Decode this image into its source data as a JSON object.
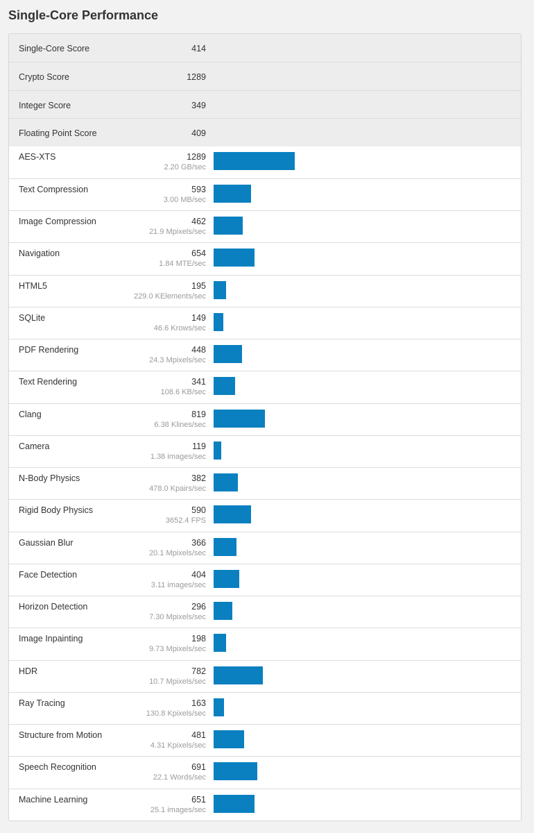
{
  "title": "Single-Core Performance",
  "scores": [
    {
      "label": "Single-Core Score",
      "value": "414"
    },
    {
      "label": "Crypto Score",
      "value": "1289"
    },
    {
      "label": "Integer Score",
      "value": "349"
    },
    {
      "label": "Floating Point Score",
      "value": "409"
    }
  ],
  "benchmarks": [
    {
      "label": "AES-XTS",
      "score": "1289",
      "rate": "2.20 GB/sec"
    },
    {
      "label": "Text Compression",
      "score": "593",
      "rate": "3.00 MB/sec"
    },
    {
      "label": "Image Compression",
      "score": "462",
      "rate": "21.9 Mpixels/sec"
    },
    {
      "label": "Navigation",
      "score": "654",
      "rate": "1.84 MTE/sec"
    },
    {
      "label": "HTML5",
      "score": "195",
      "rate": "229.0 KElements/sec"
    },
    {
      "label": "SQLite",
      "score": "149",
      "rate": "46.6 Krows/sec"
    },
    {
      "label": "PDF Rendering",
      "score": "448",
      "rate": "24.3 Mpixels/sec"
    },
    {
      "label": "Text Rendering",
      "score": "341",
      "rate": "108.6 KB/sec"
    },
    {
      "label": "Clang",
      "score": "819",
      "rate": "6.38 Klines/sec"
    },
    {
      "label": "Camera",
      "score": "119",
      "rate": "1.38 images/sec"
    },
    {
      "label": "N-Body Physics",
      "score": "382",
      "rate": "478.0 Kpairs/sec"
    },
    {
      "label": "Rigid Body Physics",
      "score": "590",
      "rate": "3652.4 FPS"
    },
    {
      "label": "Gaussian Blur",
      "score": "366",
      "rate": "20.1 Mpixels/sec"
    },
    {
      "label": "Face Detection",
      "score": "404",
      "rate": "3.11 images/sec"
    },
    {
      "label": "Horizon Detection",
      "score": "296",
      "rate": "7.30 Mpixels/sec"
    },
    {
      "label": "Image Inpainting",
      "score": "198",
      "rate": "9.73 Mpixels/sec"
    },
    {
      "label": "HDR",
      "score": "782",
      "rate": "10.7 Mpixels/sec"
    },
    {
      "label": "Ray Tracing",
      "score": "163",
      "rate": "130.8 Kpixels/sec"
    },
    {
      "label": "Structure from Motion",
      "score": "481",
      "rate": "4.31 Kpixels/sec"
    },
    {
      "label": "Speech Recognition",
      "score": "691",
      "rate": "22.1 Words/sec"
    },
    {
      "label": "Machine Learning",
      "score": "651",
      "rate": "25.1 images/sec"
    }
  ],
  "colors": {
    "bar": "#0a80c0",
    "score_row_bg": "#ededed"
  }
}
